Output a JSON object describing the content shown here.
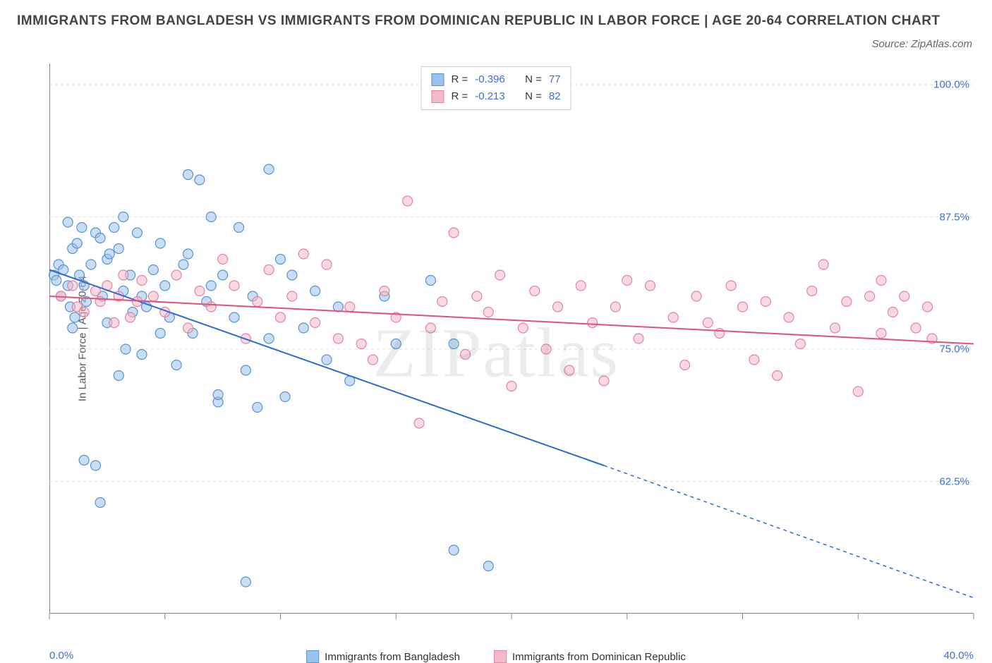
{
  "title": "IMMIGRANTS FROM BANGLADESH VS IMMIGRANTS FROM DOMINICAN REPUBLIC IN LABOR FORCE | AGE 20-64 CORRELATION CHART",
  "source_label": "Source: ZipAtlas.com",
  "watermark": "ZIPatlas",
  "chart": {
    "type": "scatter",
    "ylabel": "In Labor Force | Age 20-64",
    "xlim": [
      0,
      40
    ],
    "ylim": [
      50,
      102
    ],
    "x_ticks_major": [
      0,
      5,
      10,
      15,
      20,
      25,
      30,
      35,
      40
    ],
    "x_tick_labels_visible": {
      "0": "0.0%",
      "40": "40.0%"
    },
    "y_gridlines": [
      62.5,
      75.0,
      87.5,
      100.0
    ],
    "y_tick_labels": [
      "62.5%",
      "75.0%",
      "87.5%",
      "100.0%"
    ],
    "background_color": "#ffffff",
    "grid_color": "#dcdcdc",
    "axis_color": "#888888",
    "tick_label_color": "#3b6fd6",
    "marker_radius": 7,
    "marker_opacity": 0.55,
    "marker_stroke_width": 1.2,
    "series": [
      {
        "name": "Immigrants from Bangladesh",
        "fill_color": "#9ac3eb",
        "stroke_color": "#5a92cf",
        "line_color": "#2e6bd0",
        "R": "-0.396",
        "N": "77",
        "trend": {
          "x1": 0,
          "y1": 82.5,
          "x2": 24,
          "y2": 64,
          "ext_x2": 40,
          "ext_y2": 51.5
        },
        "points": [
          [
            0.2,
            82.0
          ],
          [
            0.3,
            81.5
          ],
          [
            0.4,
            83.0
          ],
          [
            0.5,
            80.0
          ],
          [
            0.6,
            82.5
          ],
          [
            0.8,
            81.0
          ],
          [
            0.9,
            79.0
          ],
          [
            1.0,
            84.5
          ],
          [
            1.1,
            78.0
          ],
          [
            1.2,
            85.0
          ],
          [
            1.3,
            82.0
          ],
          [
            1.4,
            86.5
          ],
          [
            1.5,
            81.0
          ],
          [
            1.6,
            79.5
          ],
          [
            1.8,
            83.0
          ],
          [
            2.0,
            86.0
          ],
          [
            2.2,
            85.5
          ],
          [
            2.3,
            80.0
          ],
          [
            2.5,
            77.5
          ],
          [
            2.5,
            83.5
          ],
          [
            2.6,
            84.0
          ],
          [
            2.8,
            86.5
          ],
          [
            3.0,
            84.5
          ],
          [
            3.0,
            72.5
          ],
          [
            3.2,
            80.5
          ],
          [
            3.3,
            75.0
          ],
          [
            3.5,
            82.0
          ],
          [
            3.6,
            78.5
          ],
          [
            3.8,
            86.0
          ],
          [
            4.0,
            80.0
          ],
          [
            4.0,
            74.5
          ],
          [
            4.2,
            79.0
          ],
          [
            4.5,
            82.5
          ],
          [
            4.8,
            85.0
          ],
          [
            5.0,
            81.0
          ],
          [
            5.2,
            78.0
          ],
          [
            5.5,
            73.5
          ],
          [
            5.8,
            83.0
          ],
          [
            6.0,
            91.5
          ],
          [
            6.2,
            76.5
          ],
          [
            6.5,
            91.0
          ],
          [
            6.8,
            79.5
          ],
          [
            7.0,
            87.5
          ],
          [
            7.3,
            70.0
          ],
          [
            7.3,
            70.7
          ],
          [
            7.5,
            82.0
          ],
          [
            8.0,
            78.0
          ],
          [
            8.2,
            86.5
          ],
          [
            8.5,
            73.0
          ],
          [
            8.8,
            80.0
          ],
          [
            9.0,
            69.5
          ],
          [
            9.5,
            92.0
          ],
          [
            9.5,
            76.0
          ],
          [
            10.0,
            83.5
          ],
          [
            10.2,
            70.5
          ],
          [
            10.5,
            82.0
          ],
          [
            11.0,
            77.0
          ],
          [
            11.5,
            80.5
          ],
          [
            12.0,
            74.0
          ],
          [
            12.5,
            79.0
          ],
          [
            13.0,
            72.0
          ],
          [
            14.5,
            80.0
          ],
          [
            15.0,
            75.5
          ],
          [
            16.5,
            81.5
          ],
          [
            17.5,
            56.0
          ],
          [
            17.5,
            75.5
          ],
          [
            19.0,
            54.5
          ],
          [
            0.8,
            87.0
          ],
          [
            1.5,
            64.5
          ],
          [
            2.0,
            64.0
          ],
          [
            2.2,
            60.5
          ],
          [
            3.2,
            87.5
          ],
          [
            4.8,
            76.5
          ],
          [
            6.0,
            84.0
          ],
          [
            7.0,
            81.0
          ],
          [
            8.5,
            53.0
          ],
          [
            1.0,
            77.0
          ]
        ]
      },
      {
        "name": "Immigrants from Dominican Republic",
        "fill_color": "#f4b9c8",
        "stroke_color": "#e484a0",
        "line_color": "#e0517c",
        "R": "-0.213",
        "N": "82",
        "trend": {
          "x1": 0,
          "y1": 80.0,
          "x2": 40,
          "y2": 75.5
        },
        "points": [
          [
            0.5,
            80.0
          ],
          [
            1.0,
            81.0
          ],
          [
            1.2,
            79.0
          ],
          [
            1.5,
            78.5
          ],
          [
            2.0,
            80.5
          ],
          [
            2.2,
            79.5
          ],
          [
            2.5,
            81.0
          ],
          [
            2.8,
            77.5
          ],
          [
            3.0,
            80.0
          ],
          [
            3.2,
            82.0
          ],
          [
            3.5,
            78.0
          ],
          [
            3.8,
            79.5
          ],
          [
            4.0,
            81.5
          ],
          [
            4.5,
            80.0
          ],
          [
            5.0,
            78.5
          ],
          [
            5.5,
            82.0
          ],
          [
            6.0,
            77.0
          ],
          [
            6.5,
            80.5
          ],
          [
            7.0,
            79.0
          ],
          [
            7.5,
            83.5
          ],
          [
            8.0,
            81.0
          ],
          [
            8.5,
            76.0
          ],
          [
            9.0,
            79.5
          ],
          [
            9.5,
            82.5
          ],
          [
            10.0,
            78.0
          ],
          [
            10.5,
            80.0
          ],
          [
            11.0,
            84.0
          ],
          [
            11.5,
            77.5
          ],
          [
            12.0,
            83.0
          ],
          [
            12.5,
            76.0
          ],
          [
            13.0,
            79.0
          ],
          [
            13.5,
            75.5
          ],
          [
            14.0,
            74.0
          ],
          [
            14.5,
            80.5
          ],
          [
            15.0,
            78.0
          ],
          [
            15.5,
            89.0
          ],
          [
            16.0,
            68.0
          ],
          [
            16.5,
            77.0
          ],
          [
            17.0,
            79.5
          ],
          [
            17.5,
            86.0
          ],
          [
            18.0,
            74.5
          ],
          [
            18.5,
            80.0
          ],
          [
            19.0,
            78.5
          ],
          [
            19.5,
            82.0
          ],
          [
            20.0,
            71.5
          ],
          [
            20.5,
            77.0
          ],
          [
            21.0,
            80.5
          ],
          [
            21.5,
            75.0
          ],
          [
            22.0,
            79.0
          ],
          [
            22.5,
            73.0
          ],
          [
            23.0,
            81.0
          ],
          [
            23.5,
            77.5
          ],
          [
            24.0,
            72.0
          ],
          [
            24.5,
            79.0
          ],
          [
            25.0,
            81.5
          ],
          [
            25.5,
            76.0
          ],
          [
            26.0,
            81.0
          ],
          [
            27.0,
            78.0
          ],
          [
            27.5,
            73.5
          ],
          [
            28.0,
            80.0
          ],
          [
            29.0,
            76.5
          ],
          [
            29.5,
            81.0
          ],
          [
            30.0,
            79.0
          ],
          [
            30.5,
            74.0
          ],
          [
            31.0,
            79.5
          ],
          [
            31.5,
            72.5
          ],
          [
            32.0,
            78.0
          ],
          [
            33.0,
            80.5
          ],
          [
            33.5,
            83.0
          ],
          [
            34.0,
            77.0
          ],
          [
            34.5,
            79.5
          ],
          [
            35.0,
            71.0
          ],
          [
            35.5,
            80.0
          ],
          [
            36.0,
            76.5
          ],
          [
            36.5,
            78.5
          ],
          [
            37.0,
            80.0
          ],
          [
            37.5,
            77.0
          ],
          [
            38.0,
            79.0
          ],
          [
            38.2,
            76.0
          ],
          [
            36.0,
            81.5
          ],
          [
            32.5,
            75.5
          ],
          [
            28.5,
            77.5
          ]
        ]
      }
    ]
  },
  "legend_top": {
    "r_label": "R =",
    "n_label": "N ="
  }
}
